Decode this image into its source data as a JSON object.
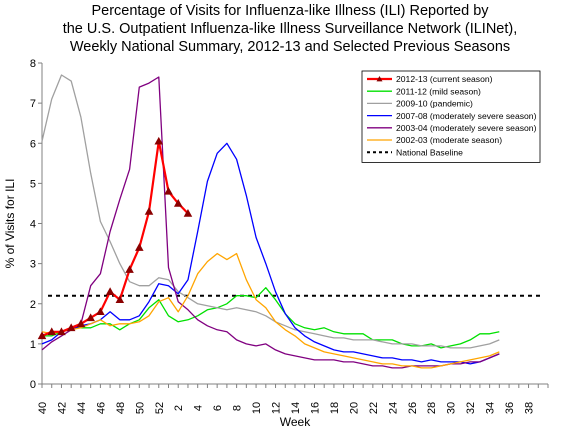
{
  "chart_data": {
    "type": "line",
    "title_lines": [
      "Percentage of Visits for Influenza-like Illness (ILI) Reported by",
      "the U.S. Outpatient Influenza-like Illness Surveillance Network (ILINet),",
      "Weekly National Summary, 2012-13 and Selected Previous Seasons"
    ],
    "xlabel": "Week",
    "ylabel": "% of Visits for ILI",
    "ylim": [
      0,
      8
    ],
    "yticks": [
      0,
      1,
      2,
      3,
      4,
      5,
      6,
      7,
      8
    ],
    "x_tick_labels": [
      "40",
      "42",
      "44",
      "46",
      "48",
      "50",
      "52",
      "2",
      "4",
      "6",
      "8",
      "10",
      "12",
      "14",
      "16",
      "18",
      "20",
      "22",
      "24",
      "26",
      "28",
      "30",
      "32",
      "34",
      "36",
      "38"
    ],
    "legend_position": "top-right",
    "baseline": {
      "name": "National Baseline",
      "value": 2.2,
      "color": "#000000"
    },
    "series": [
      {
        "name": "2012-13 (current season)",
        "color": "#ff0000",
        "marker": "triangle",
        "width": 2.2,
        "values": [
          1.2,
          1.3,
          1.3,
          1.4,
          1.5,
          1.65,
          1.8,
          2.3,
          2.1,
          2.85,
          3.4,
          4.3,
          6.05,
          4.8,
          4.5,
          4.25
        ]
      },
      {
        "name": "2011-12 (mild season)",
        "color": "#00e000",
        "width": 1.3,
        "values": [
          1.2,
          1.2,
          1.3,
          1.4,
          1.4,
          1.4,
          1.5,
          1.5,
          1.35,
          1.5,
          1.6,
          1.9,
          2.1,
          1.7,
          1.55,
          1.6,
          1.7,
          1.85,
          1.9,
          2.0,
          2.2,
          2.2,
          2.15,
          2.4,
          2.1,
          1.75,
          1.5,
          1.4,
          1.35,
          1.4,
          1.3,
          1.25,
          1.25,
          1.25,
          1.1,
          1.1,
          1.1,
          1.0,
          0.95,
          0.95,
          1.0,
          0.9,
          0.95,
          1.0,
          1.1,
          1.25,
          1.25,
          1.3
        ]
      },
      {
        "name": "2009-10 (pandemic)",
        "color": "#a0a0a0",
        "width": 1.3,
        "values": [
          6.05,
          7.1,
          7.7,
          7.55,
          6.65,
          5.25,
          4.05,
          3.55,
          3.0,
          2.55,
          2.45,
          2.45,
          2.65,
          2.6,
          2.3,
          2.15,
          2.0,
          1.95,
          1.9,
          1.85,
          1.9,
          1.85,
          1.8,
          1.7,
          1.55,
          1.45,
          1.35,
          1.3,
          1.25,
          1.2,
          1.15,
          1.15,
          1.1,
          1.1,
          1.1,
          1.05,
          1.0,
          1.0,
          1.0,
          0.95,
          0.95,
          0.95,
          0.9,
          0.9,
          0.9,
          0.95,
          1.0,
          1.1
        ]
      },
      {
        "name": "2007-08 (moderately severe season)",
        "color": "#0000ff",
        "width": 1.3,
        "values": [
          1.0,
          1.1,
          1.3,
          1.35,
          1.45,
          1.5,
          1.6,
          1.8,
          1.6,
          1.6,
          1.7,
          2.05,
          2.5,
          2.45,
          2.25,
          2.6,
          3.8,
          5.05,
          5.75,
          6.0,
          5.6,
          4.7,
          3.65,
          3.0,
          2.3,
          1.75,
          1.4,
          1.2,
          1.05,
          0.95,
          0.85,
          0.8,
          0.8,
          0.75,
          0.7,
          0.65,
          0.65,
          0.6,
          0.6,
          0.55,
          0.6,
          0.55,
          0.55,
          0.55,
          0.5,
          0.55,
          0.65,
          0.75
        ]
      },
      {
        "name": "2003-04 (moderately severe season)",
        "color": "#800080",
        "width": 1.3,
        "values": [
          0.85,
          1.05,
          1.2,
          1.35,
          1.5,
          2.45,
          2.75,
          3.8,
          4.6,
          5.35,
          7.4,
          7.5,
          7.65,
          2.9,
          2.05,
          1.85,
          1.6,
          1.45,
          1.35,
          1.3,
          1.1,
          1.0,
          0.95,
          1.0,
          0.85,
          0.75,
          0.7,
          0.65,
          0.6,
          0.6,
          0.6,
          0.55,
          0.55,
          0.5,
          0.45,
          0.45,
          0.4,
          0.4,
          0.45,
          0.45,
          0.45,
          0.45,
          0.5,
          0.5,
          0.55,
          0.55,
          0.65,
          0.75
        ]
      },
      {
        "name": "2002-03 (moderate season)",
        "color": "#ffa500",
        "width": 1.3,
        "values": [
          1.3,
          1.25,
          1.3,
          1.35,
          1.4,
          1.5,
          1.6,
          1.45,
          1.5,
          1.5,
          1.55,
          1.7,
          2.05,
          2.15,
          1.8,
          2.2,
          2.75,
          3.05,
          3.25,
          3.1,
          3.25,
          2.6,
          2.1,
          1.9,
          1.55,
          1.35,
          1.2,
          1.0,
          0.9,
          0.8,
          0.75,
          0.7,
          0.65,
          0.6,
          0.55,
          0.5,
          0.5,
          0.45,
          0.45,
          0.4,
          0.4,
          0.45,
          0.5,
          0.55,
          0.6,
          0.65,
          0.7,
          0.8
        ]
      }
    ]
  }
}
